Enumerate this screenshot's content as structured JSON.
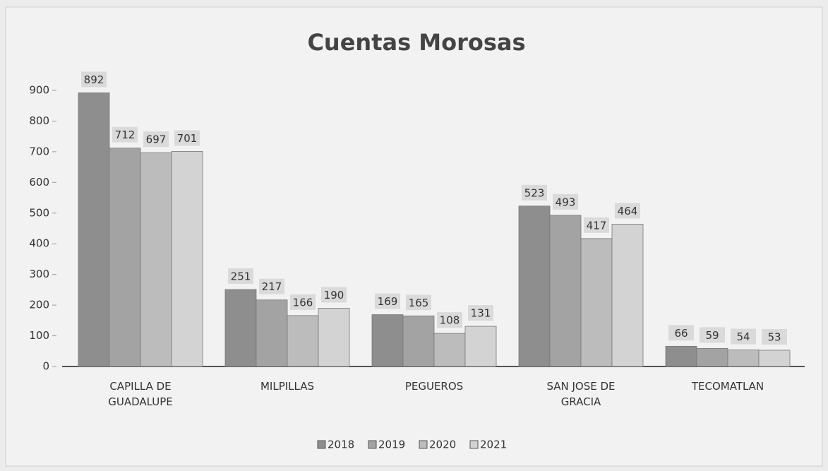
{
  "chart_data": {
    "type": "bar",
    "title": "Cuentas Morosas",
    "categories": [
      "CAPILLA DE GUADALUPE",
      "MILPILLAS",
      "PEGUEROS",
      "SAN JOSE DE GRACIA",
      "TECOMATLAN"
    ],
    "series": [
      {
        "name": "2018",
        "color": "#8e8e8e",
        "values": [
          892,
          251,
          169,
          523,
          66
        ]
      },
      {
        "name": "2019",
        "color": "#a3a3a3",
        "values": [
          712,
          217,
          165,
          493,
          59
        ]
      },
      {
        "name": "2020",
        "color": "#bcbcbc",
        "values": [
          697,
          166,
          108,
          417,
          54
        ]
      },
      {
        "name": "2021",
        "color": "#d3d3d3",
        "values": [
          701,
          190,
          131,
          464,
          53
        ]
      }
    ],
    "ylim": [
      0,
      900
    ],
    "yticks": [
      0,
      100,
      200,
      300,
      400,
      500,
      600,
      700,
      800,
      900
    ],
    "legend": "bottom"
  }
}
